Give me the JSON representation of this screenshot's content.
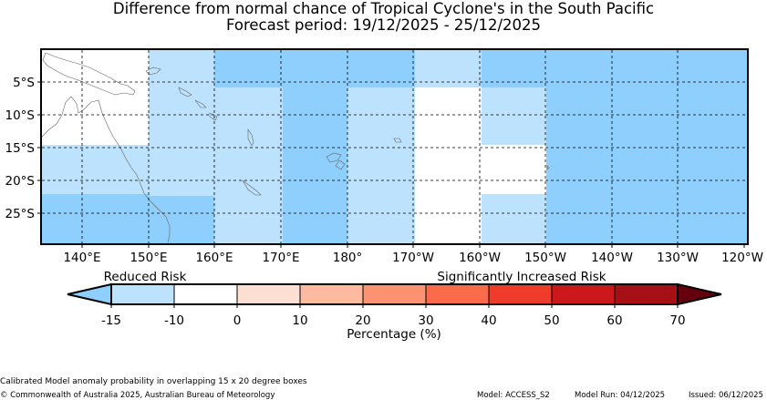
{
  "title": "Difference from normal chance of Tropical Cyclone's in the South Pacific",
  "subtitle": "Forecast period: 19/12/2025 - 25/12/2025",
  "map": {
    "lon_labels": [
      "140°E",
      "150°E",
      "160°E",
      "170°E",
      "180°",
      "170°W",
      "160°W",
      "150°W",
      "140°W",
      "130°W",
      "120°W"
    ],
    "lat_labels": [
      "5°S",
      "10°S",
      "15°S",
      "20°S",
      "25°S"
    ],
    "colors": {
      "light": "#bde2fd",
      "mid": "#8ecffd",
      "white": "#ffffff"
    }
  },
  "colorbar": {
    "left_text": "Reduced Risk",
    "right_text": "Significantly Increased Risk",
    "ticks": [
      "-15",
      "-10",
      "0",
      "10",
      "20",
      "30",
      "40",
      "50",
      "60",
      "70"
    ],
    "label": "Percentage (%)",
    "colors": [
      "#bde2fd",
      "#ffffff",
      "#fee0d2",
      "#fcbba1",
      "#fc9272",
      "#fb6a4a",
      "#ef3b2c",
      "#cb181d",
      "#a50f15"
    ],
    "low_extend_color": "#8ecffd",
    "high_extend_color": "#67000d"
  },
  "footer": {
    "method": "Calibrated Model anomaly probability in overlapping 15 x 20 degree boxes",
    "copyright": "© Commonwealth of Australia 2025, Australian Bureau of Meteorology",
    "model": "Model: ACCESS_S2",
    "run": "Model Run: 04/12/2025",
    "issued": "Issued: 06/12/2025"
  }
}
